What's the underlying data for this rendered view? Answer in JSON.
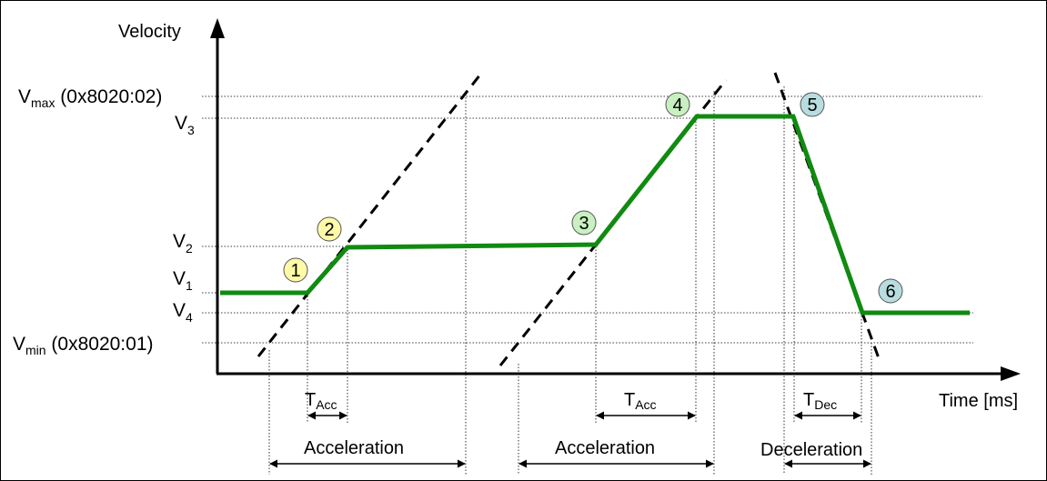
{
  "axes": {
    "y_label": "Velocity",
    "x_label": "Time [ms]"
  },
  "levels": {
    "vmax": {
      "main": "V",
      "sub": "max",
      "suffix": " (0x8020:02)"
    },
    "v3": {
      "main": "V",
      "sub": "3"
    },
    "v2": {
      "main": "V",
      "sub": "2"
    },
    "v1": {
      "main": "V",
      "sub": "1"
    },
    "v4": {
      "main": "V",
      "sub": "4"
    },
    "vmin": {
      "main": "V",
      "sub": "min",
      "suffix": " (0x8020:01)"
    }
  },
  "markers": [
    {
      "label": "1",
      "color": "#fffaa8"
    },
    {
      "label": "2",
      "color": "#fffaa8"
    },
    {
      "label": "3",
      "color": "#c8f0c0"
    },
    {
      "label": "4",
      "color": "#c8f0c0"
    },
    {
      "label": "5",
      "color": "#b8dde0"
    },
    {
      "label": "6",
      "color": "#b8dde0"
    }
  ],
  "spans": {
    "t_acc_1": {
      "main": "T",
      "sub": "Acc"
    },
    "t_acc_2": {
      "main": "T",
      "sub": "Acc"
    },
    "t_dec": {
      "main": "T",
      "sub": "Dec"
    },
    "acceleration_1": "Acceleration",
    "acceleration_2": "Acceleration",
    "deceleration": "Deceleration"
  },
  "colors": {
    "profile": "#118a11",
    "axis": "#000000"
  }
}
